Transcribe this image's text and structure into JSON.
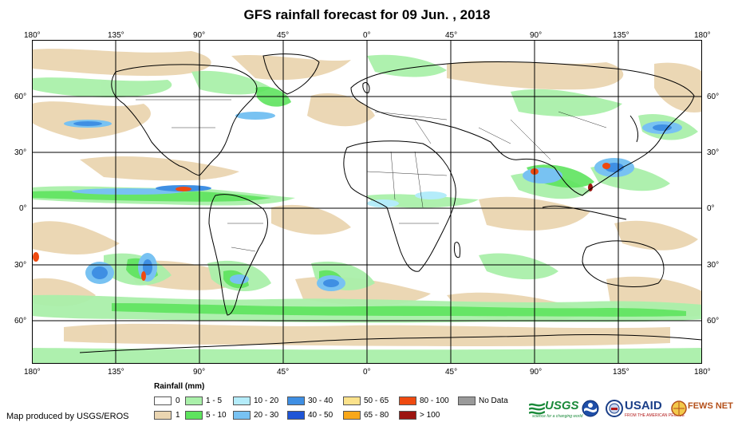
{
  "title": "GFS rainfall forecast for 09 Jun. , 2018",
  "lon_labels": [
    "180°",
    "135°",
    "90°",
    "45°",
    "0°",
    "45°",
    "90°",
    "135°",
    "180°"
  ],
  "lat_labels": [
    "60°",
    "30°",
    "0°",
    "30°",
    "60°"
  ],
  "legend": {
    "title": "Rainfall (mm)",
    "items": [
      {
        "label": "0",
        "color": "#ffffff"
      },
      {
        "label": "1",
        "color": "#ead5b1"
      },
      {
        "label": "1 - 5",
        "color": "#aaf0aa"
      },
      {
        "label": "5 - 10",
        "color": "#5ee35e"
      },
      {
        "label": "10 - 20",
        "color": "#b4ecfa"
      },
      {
        "label": "20 - 30",
        "color": "#78c2f2"
      },
      {
        "label": "30 - 40",
        "color": "#3f8fe3"
      },
      {
        "label": "40 - 50",
        "color": "#1f55d6"
      },
      {
        "label": "50 - 65",
        "color": "#fbe28b"
      },
      {
        "label": "65 - 80",
        "color": "#f8a719"
      },
      {
        "label": "80 - 100",
        "color": "#ef4a10"
      },
      {
        "label": "> 100",
        "color": "#9c1410"
      },
      {
        "label": "No Data",
        "color": "#9a9a9a"
      }
    ]
  },
  "credit": "Map produced by USGS/EROS",
  "logos": {
    "usgs": "USGS",
    "usgs_tag": "science for a changing world",
    "usaid": "USAID",
    "usaid_tag": "FROM THE AMERICAN PEOPLE",
    "fewsnet": "FEWS NET"
  }
}
